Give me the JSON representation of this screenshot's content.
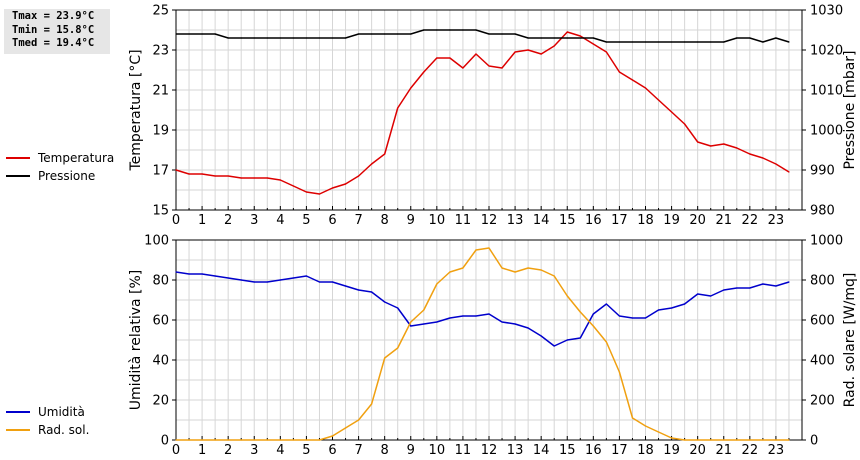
{
  "stats": {
    "tmax": "Tmax = 23.9°C",
    "tmin": "Tmin = 15.8°C",
    "tmed": "Tmed = 19.4°C"
  },
  "colors": {
    "temperature": "#dd0000",
    "pressure": "#000000",
    "humidity": "#0000cc",
    "radiation": "#f0a010",
    "grid": "#d6d6d6"
  },
  "chart_data": [
    {
      "type": "line",
      "x": [
        0,
        0.5,
        1,
        1.5,
        2,
        2.5,
        3,
        3.5,
        4,
        4.5,
        5,
        5.5,
        6,
        6.5,
        7,
        7.5,
        8,
        8.5,
        9,
        9.5,
        10,
        10.5,
        11,
        11.5,
        12,
        12.5,
        13,
        13.5,
        14,
        14.5,
        15,
        15.5,
        16,
        16.5,
        17,
        17.5,
        18,
        18.5,
        19,
        19.5,
        20,
        20.5,
        21,
        21.5,
        22,
        22.5,
        23,
        23.5
      ],
      "xticks": [
        "0",
        "1",
        "2",
        "3",
        "4",
        "5",
        "6",
        "7",
        "8",
        "9",
        "10",
        "11",
        "12",
        "13",
        "14",
        "15",
        "16",
        "17",
        "18",
        "19",
        "20",
        "21",
        "22",
        "23"
      ],
      "xlim": [
        0,
        24
      ],
      "ylabel": "Temperatura [°C]",
      "ylim": [
        15,
        25
      ],
      "yticks": [
        "15",
        "17",
        "19",
        "21",
        "23",
        "25"
      ],
      "y2label": "Pressione [mbar]",
      "y2lim": [
        980,
        1030
      ],
      "y2ticks": [
        "980",
        "990",
        "1000",
        "1010",
        "1020",
        "1030"
      ],
      "grid": true,
      "legend_position": "left",
      "series": [
        {
          "name": "Temperatura",
          "axis": "left",
          "color": "#dd0000",
          "values": [
            17.0,
            16.8,
            16.8,
            16.7,
            16.7,
            16.6,
            16.6,
            16.6,
            16.5,
            16.2,
            15.9,
            15.8,
            16.1,
            16.3,
            16.7,
            17.3,
            17.8,
            20.1,
            21.1,
            21.9,
            22.6,
            22.6,
            22.1,
            22.8,
            22.2,
            22.1,
            22.9,
            23.0,
            22.8,
            23.2,
            23.9,
            23.7,
            23.3,
            22.9,
            21.9,
            21.5,
            21.1,
            20.5,
            19.9,
            19.3,
            18.4,
            18.2,
            18.3,
            18.1,
            17.8,
            17.6,
            17.3,
            16.9
          ]
        },
        {
          "name": "Pressione",
          "axis": "right",
          "color": "#000000",
          "values": [
            1024,
            1024,
            1024,
            1024,
            1023,
            1023,
            1023,
            1023,
            1023,
            1023,
            1023,
            1023,
            1023,
            1023,
            1024,
            1024,
            1024,
            1024,
            1024,
            1025,
            1025,
            1025,
            1025,
            1025,
            1024,
            1024,
            1024,
            1023,
            1023,
            1023,
            1023,
            1023,
            1023,
            1022,
            1022,
            1022,
            1022,
            1022,
            1022,
            1022,
            1022,
            1022,
            1022,
            1023,
            1023,
            1022,
            1023,
            1022
          ]
        }
      ]
    },
    {
      "type": "line",
      "x": [
        0,
        0.5,
        1,
        1.5,
        2,
        2.5,
        3,
        3.5,
        4,
        4.5,
        5,
        5.5,
        6,
        6.5,
        7,
        7.5,
        8,
        8.5,
        9,
        9.5,
        10,
        10.5,
        11,
        11.5,
        12,
        12.5,
        13,
        13.5,
        14,
        14.5,
        15,
        15.5,
        16,
        16.5,
        17,
        17.5,
        18,
        18.5,
        19,
        19.5,
        20,
        20.5,
        21,
        21.5,
        22,
        22.5,
        23,
        23.5
      ],
      "xticks": [
        "0",
        "1",
        "2",
        "3",
        "4",
        "5",
        "6",
        "7",
        "8",
        "9",
        "10",
        "11",
        "12",
        "13",
        "14",
        "15",
        "16",
        "17",
        "18",
        "19",
        "20",
        "21",
        "22",
        "23"
      ],
      "xlim": [
        0,
        24
      ],
      "ylabel": "Umidità relativa [%]",
      "ylim": [
        0,
        100
      ],
      "yticks": [
        "0",
        "20",
        "40",
        "60",
        "80",
        "100"
      ],
      "y2label": "Rad. solare [W/mq]",
      "y2lim": [
        0,
        1000
      ],
      "y2ticks": [
        "0",
        "200",
        "400",
        "600",
        "800",
        "1000"
      ],
      "grid": true,
      "legend_position": "left",
      "series": [
        {
          "name": "Umidità",
          "axis": "left",
          "color": "#0000cc",
          "values": [
            84,
            83,
            83,
            82,
            81,
            80,
            79,
            79,
            80,
            81,
            82,
            79,
            79,
            77,
            75,
            74,
            69,
            66,
            57,
            58,
            59,
            61,
            62,
            62,
            63,
            59,
            58,
            56,
            52,
            47,
            50,
            51,
            63,
            68,
            62,
            61,
            61,
            65,
            66,
            68,
            73,
            72,
            75,
            76,
            76,
            78,
            77,
            79
          ]
        },
        {
          "name": "Rad. sol.",
          "axis": "right",
          "color": "#f0a010",
          "values": [
            0,
            0,
            0,
            0,
            0,
            0,
            0,
            0,
            0,
            0,
            0,
            0,
            20,
            60,
            100,
            180,
            410,
            460,
            590,
            650,
            780,
            840,
            860,
            950,
            960,
            860,
            840,
            860,
            850,
            820,
            720,
            640,
            570,
            490,
            340,
            110,
            70,
            40,
            10,
            0,
            0,
            0,
            0,
            0,
            0,
            0,
            0,
            0
          ]
        }
      ]
    }
  ]
}
